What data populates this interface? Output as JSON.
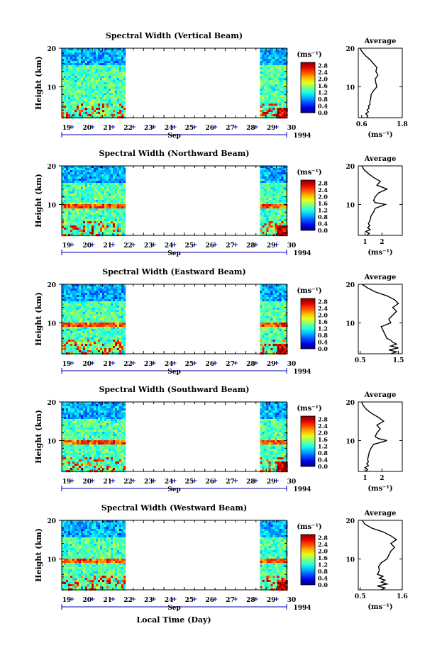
{
  "figure": {
    "xlabel": "Local Time (Day)"
  },
  "chart_data": [
    {
      "type": "heatmap",
      "title": "Spectral Width (Vertical Beam)",
      "ylabel": "Height (km)",
      "ylim": [
        2,
        20
      ],
      "yticks": [
        "10",
        "20"
      ],
      "xticks": [
        "19",
        "20",
        "21",
        "22",
        "23",
        "24",
        "25",
        "26",
        "27",
        "28",
        "29",
        "30"
      ],
      "month": "Sep",
      "year": "1994",
      "data_coverage": [
        [
          19,
          22.1
        ],
        [
          28.7,
          30
        ]
      ],
      "colorbar": {
        "unit": "(ms⁻¹)",
        "ticks": [
          "0.0",
          "0.4",
          "0.8",
          "1.2",
          "1.6",
          "2.0",
          "2.4",
          "2.8"
        ],
        "range": [
          0,
          3.0
        ]
      },
      "average": {
        "title": "Average",
        "xlabel": "(ms⁻¹)",
        "xlim": [
          0.5,
          1.8
        ],
        "xticks": [
          "0.6",
          "1.8"
        ],
        "heights": [
          2,
          2.5,
          3,
          3.5,
          4,
          4.5,
          5,
          5.5,
          6,
          7,
          8,
          9,
          10,
          11,
          12,
          13,
          14,
          15,
          16,
          17,
          18,
          19,
          20
        ],
        "values": [
          0.75,
          0.78,
          0.72,
          0.8,
          0.76,
          0.82,
          0.8,
          0.85,
          0.84,
          0.87,
          0.88,
          0.95,
          1.05,
          1.02,
          1.0,
          1.08,
          1.02,
          1.05,
          0.95,
          0.85,
          0.72,
          0.62,
          0.55
        ]
      }
    },
    {
      "type": "heatmap",
      "title": "Spectral Width (Northward Beam)",
      "ylabel": "Height (km)",
      "ylim": [
        2,
        20
      ],
      "yticks": [
        "10",
        "20"
      ],
      "xticks": [
        "19",
        "20",
        "21",
        "22",
        "23",
        "24",
        "25",
        "26",
        "27",
        "28",
        "29",
        "30"
      ],
      "month": "Sep",
      "year": "1994",
      "data_coverage": [
        [
          19,
          22.1
        ],
        [
          28.7,
          30
        ]
      ],
      "colorbar": {
        "unit": "(ms⁻¹)",
        "ticks": [
          "0.0",
          "0.4",
          "0.8",
          "1.2",
          "1.6",
          "2.0",
          "2.4",
          "2.8"
        ],
        "range": [
          0,
          3.0
        ]
      },
      "average": {
        "title": "Average",
        "xlabel": "(ms⁻¹)",
        "xlim": [
          0.6,
          3.2
        ],
        "xticks": [
          "1",
          "2"
        ],
        "heights": [
          2,
          2.5,
          3,
          3.5,
          4,
          4.5,
          5,
          6,
          7,
          8,
          9,
          10,
          10.5,
          11,
          12,
          13,
          14,
          15,
          16,
          17,
          18,
          19,
          20
        ],
        "values": [
          1.1,
          1.25,
          1.05,
          1.3,
          1.15,
          1.28,
          1.2,
          1.3,
          1.35,
          1.5,
          1.6,
          2.2,
          1.6,
          1.5,
          1.6,
          1.8,
          2.3,
          1.7,
          1.9,
          1.5,
          1.2,
          0.95,
          0.8
        ]
      }
    },
    {
      "type": "heatmap",
      "title": "Spectral Width (Eastward Beam)",
      "ylabel": "Height (km)",
      "ylim": [
        2,
        20
      ],
      "yticks": [
        "10",
        "20"
      ],
      "xticks": [
        "19",
        "20",
        "21",
        "22",
        "23",
        "24",
        "25",
        "26",
        "27",
        "28",
        "29",
        "30"
      ],
      "month": "Sep",
      "year": "1994",
      "data_coverage": [
        [
          19,
          22.1
        ],
        [
          28.7,
          30
        ]
      ],
      "colorbar": {
        "unit": "(ms⁻¹)",
        "ticks": [
          "0.0",
          "0.4",
          "0.8",
          "1.2",
          "1.6",
          "2.0",
          "2.4",
          "2.8"
        ],
        "range": [
          0,
          3.0
        ]
      },
      "average": {
        "title": "Average",
        "xlabel": "",
        "xlim": [
          0.45,
          1.6
        ],
        "xticks": [
          "0.5",
          "1.5"
        ],
        "heights": [
          2,
          2.5,
          3,
          3.5,
          4,
          4.5,
          5,
          5.5,
          6,
          7,
          8,
          9,
          10,
          11,
          12,
          13,
          14,
          15,
          16,
          17,
          18,
          19,
          20
        ],
        "values": [
          1.3,
          1.45,
          1.25,
          1.5,
          1.3,
          1.45,
          1.35,
          1.3,
          1.2,
          1.15,
          1.1,
          1.05,
          1.3,
          1.25,
          1.35,
          1.45,
          1.35,
          1.5,
          1.4,
          1.2,
          0.9,
          0.7,
          0.55
        ]
      }
    },
    {
      "type": "heatmap",
      "title": "Spectral Width (Southward Beam)",
      "ylabel": "Height (km)",
      "ylim": [
        2,
        20
      ],
      "yticks": [
        "10",
        "20"
      ],
      "xticks": [
        "19",
        "20",
        "21",
        "22",
        "23",
        "24",
        "25",
        "26",
        "27",
        "28",
        "29",
        "30"
      ],
      "month": "Sep",
      "year": "1994",
      "data_coverage": [
        [
          19,
          22.1
        ],
        [
          28.7,
          30
        ]
      ],
      "colorbar": {
        "unit": "(ms⁻¹)",
        "ticks": [
          "0.0",
          "0.4",
          "0.8",
          "1.2",
          "1.6",
          "2.0",
          "2.4",
          "2.8"
        ],
        "range": [
          0,
          3.0
        ]
      },
      "average": {
        "title": "Average",
        "xlabel": "(ms⁻¹)",
        "xlim": [
          0.6,
          3.2
        ],
        "xticks": [
          "1",
          "2"
        ],
        "heights": [
          2,
          2.5,
          3,
          3.5,
          4,
          4.5,
          5,
          6,
          7,
          8,
          9,
          10,
          10.5,
          11,
          12,
          13,
          14,
          15,
          16,
          17,
          18,
          19,
          20
        ],
        "values": [
          1.05,
          1.15,
          1.0,
          1.2,
          1.1,
          1.2,
          1.15,
          1.2,
          1.25,
          1.35,
          1.5,
          2.3,
          1.8,
          1.6,
          1.7,
          1.9,
          1.7,
          2.1,
          1.8,
          1.4,
          1.1,
          0.9,
          0.8
        ]
      }
    },
    {
      "type": "heatmap",
      "title": "Spectral Width (Westward Beam)",
      "ylabel": "Height (km)",
      "ylim": [
        2,
        20
      ],
      "yticks": [
        "10",
        "20"
      ],
      "xticks": [
        "19",
        "20",
        "21",
        "22",
        "23",
        "24",
        "25",
        "26",
        "27",
        "28",
        "29",
        "30"
      ],
      "month": "Sep",
      "year": "1994",
      "data_coverage": [
        [
          19,
          22.1
        ],
        [
          28.7,
          30
        ]
      ],
      "colorbar": {
        "unit": "(ms⁻¹)",
        "ticks": [
          "0.0",
          "0.4",
          "0.8",
          "1.2",
          "1.6",
          "2.0",
          "2.4",
          "2.8"
        ],
        "range": [
          0,
          3.0
        ]
      },
      "average": {
        "title": "Average",
        "xlabel": "(ms⁻¹)",
        "xlim": [
          0.45,
          1.6
        ],
        "xticks": [
          "0.5",
          "1.6"
        ],
        "heights": [
          2,
          2.5,
          3,
          3.5,
          4,
          4.5,
          5,
          5.5,
          6,
          7,
          8,
          9,
          10,
          11,
          12,
          13,
          14,
          15,
          16,
          17,
          18,
          19,
          20
        ],
        "values": [
          1.05,
          1.15,
          0.95,
          1.2,
          1.05,
          1.15,
          1.0,
          1.1,
          0.95,
          1.0,
          0.98,
          1.05,
          1.2,
          1.25,
          1.3,
          1.4,
          1.3,
          1.45,
          1.3,
          1.1,
          0.8,
          0.62,
          0.55
        ]
      }
    }
  ]
}
